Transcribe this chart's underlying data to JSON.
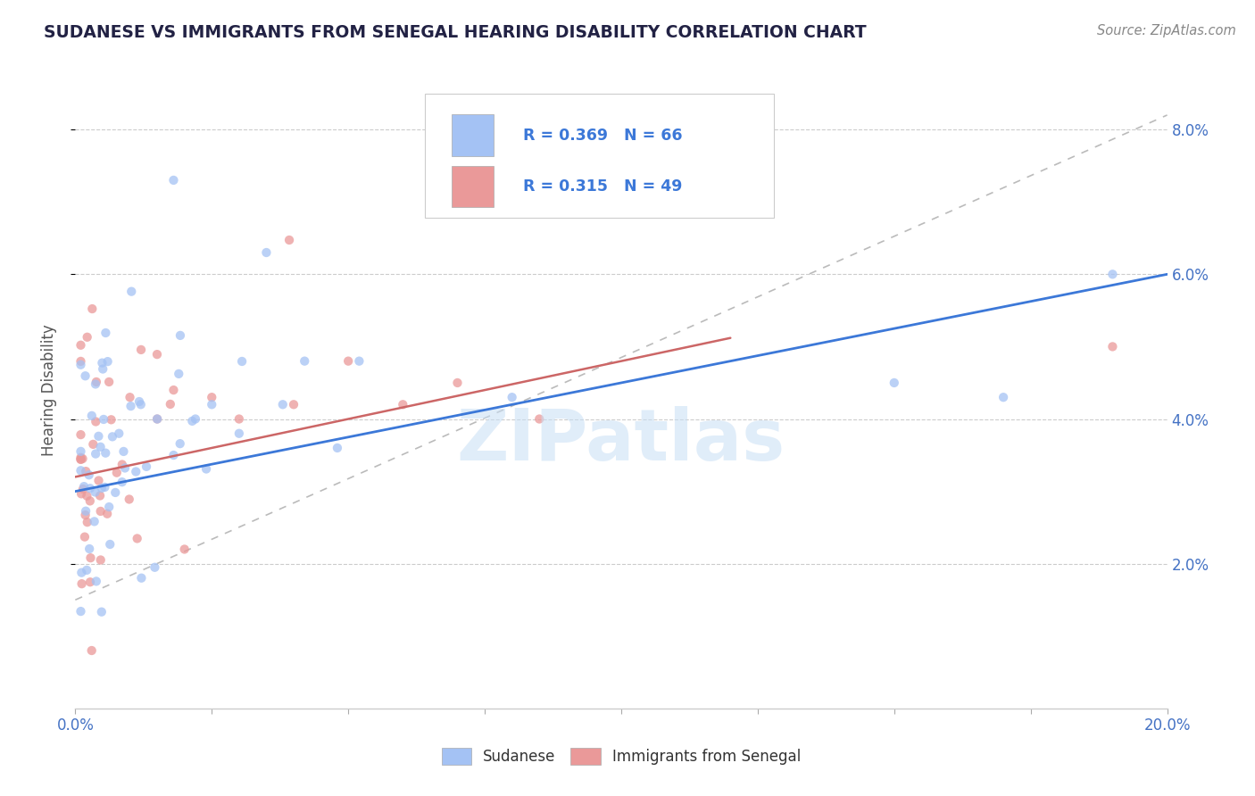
{
  "title": "SUDANESE VS IMMIGRANTS FROM SENEGAL HEARING DISABILITY CORRELATION CHART",
  "source": "Source: ZipAtlas.com",
  "ylabel": "Hearing Disability",
  "xlim": [
    0.0,
    0.2
  ],
  "ylim": [
    0.0,
    0.088
  ],
  "sudanese_R": 0.369,
  "sudanese_N": 66,
  "senegal_R": 0.315,
  "senegal_N": 49,
  "sudanese_color": "#a4c2f4",
  "senegal_color": "#ea9999",
  "trend_sudanese_color": "#3c78d8",
  "trend_senegal_color": "#cc6666",
  "trend_grey_color": "#bbbbbb",
  "background_color": "#ffffff",
  "watermark": "ZIPatlas",
  "legend_text_color": "#3c78d8",
  "grid_color": "#cccccc"
}
